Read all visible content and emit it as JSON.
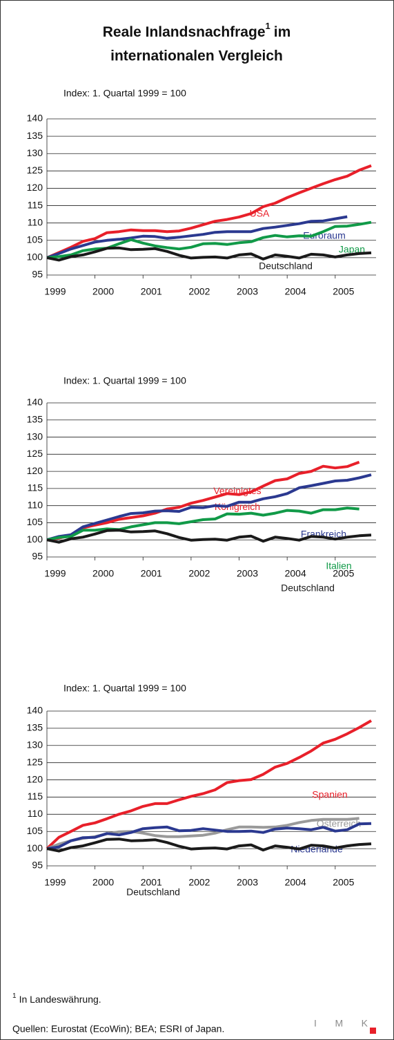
{
  "title": "Reale Inlandsnachfrage",
  "title_mark": "1",
  "title_end": "im",
  "title_line2": "internationalen Vergleich",
  "footnote": {
    "mark": "1",
    "text": "In Landeswährung."
  },
  "sources": "Quellen: Eurostat (EcoWin); BEA;  ESRI of Japan.",
  "logo": "IMK",
  "chart_data": [
    {
      "type": "line",
      "subtitle": "Index: 1. Quartal 1999 = 100",
      "x": [
        1999,
        1999.25,
        1999.5,
        1999.75,
        2000,
        2000.25,
        2000.5,
        2000.75,
        2001,
        2001.25,
        2001.5,
        2001.75,
        2002,
        2002.25,
        2002.5,
        2002.75,
        2003,
        2003.25,
        2003.5,
        2003.75,
        2004,
        2004.25,
        2004.5,
        2004.75,
        2005,
        2005.25,
        2005.5,
        2005.75
      ],
      "xlim": [
        1999,
        2005.85
      ],
      "xticks": [
        1999,
        2000,
        2001,
        2002,
        2003,
        2004,
        2005
      ],
      "ylim": [
        95,
        140
      ],
      "yticks": [
        95,
        100,
        105,
        110,
        115,
        120,
        125,
        130,
        135,
        140
      ],
      "grid": true,
      "series": [
        {
          "name": "USA",
          "color": "#e8202a",
          "values": [
            100,
            101.5,
            103,
            104.7,
            105.5,
            107.2,
            107.5,
            108,
            107.8,
            107.8,
            107.5,
            107.7,
            108.5,
            109.5,
            110.5,
            111,
            111.7,
            112.7,
            114.7,
            115.7,
            117.3,
            118.7,
            120,
            121.3,
            122.5,
            123.5,
            125.2,
            126.5
          ]
        },
        {
          "name": "Euroraum",
          "color": "#2b3990",
          "values": [
            100,
            101.2,
            102.5,
            103.5,
            104.5,
            105,
            105.3,
            105.7,
            106.2,
            106.1,
            105.6,
            105.9,
            106.3,
            106.7,
            107.3,
            107.5,
            107.5,
            107.5,
            108.4,
            108.8,
            109.3,
            109.8,
            110.5,
            110.6,
            111.2,
            111.8,
            null,
            null
          ]
        },
        {
          "name": "Japan",
          "color": "#119a48",
          "values": [
            100,
            100.3,
            100.8,
            102,
            102.5,
            102.7,
            104,
            105.2,
            104.2,
            103.4,
            102.9,
            102.5,
            103,
            104,
            104.1,
            103.8,
            104.3,
            104.6,
            105.8,
            106.4,
            106,
            106.3,
            106.2,
            107.5,
            109,
            109.1,
            109.6,
            110.2
          ]
        },
        {
          "name": "Deutschland",
          "color": "#1a1a1a",
          "values": [
            100,
            99.3,
            100.3,
            100.8,
            101.7,
            102.7,
            102.8,
            102.3,
            102.4,
            102.6,
            101.8,
            100.7,
            99.9,
            100.1,
            100.2,
            99.9,
            100.8,
            101.1,
            99.6,
            100.8,
            100.4,
            99.9,
            101,
            100.8,
            100.2,
            100.8,
            101.2,
            101.4
          ]
        }
      ]
    },
    {
      "type": "line",
      "subtitle": "Index: 1. Quartal 1999 = 100",
      "x": [
        1999,
        1999.25,
        1999.5,
        1999.75,
        2000,
        2000.25,
        2000.5,
        2000.75,
        2001,
        2001.25,
        2001.5,
        2001.75,
        2002,
        2002.25,
        2002.5,
        2002.75,
        2003,
        2003.25,
        2003.5,
        2003.75,
        2004,
        2004.25,
        2004.5,
        2004.75,
        2005,
        2005.25,
        2005.5,
        2005.75
      ],
      "xlim": [
        1999,
        2005.85
      ],
      "xticks": [
        1999,
        2000,
        2001,
        2002,
        2003,
        2004,
        2005
      ],
      "ylim": [
        95,
        140
      ],
      "yticks": [
        95,
        100,
        105,
        110,
        115,
        120,
        125,
        130,
        135,
        140
      ],
      "grid": true,
      "series": [
        {
          "name": "Vereinigtes Königreich",
          "color": "#e8202a",
          "values": [
            100,
            100.5,
            101.3,
            103.5,
            104.3,
            105,
            106,
            106.5,
            107,
            107.8,
            109,
            109.5,
            110.7,
            111.5,
            112.5,
            113.5,
            113.2,
            114,
            115.7,
            117.3,
            117.8,
            119.4,
            120,
            121.5,
            121,
            121.4,
            122.7,
            null
          ]
        },
        {
          "name": "Frankreich",
          "color": "#2b3990",
          "values": [
            100,
            101,
            101.5,
            103.8,
            104.8,
            105.8,
            106.8,
            107.7,
            107.9,
            108.4,
            108.5,
            108.3,
            109.5,
            109.4,
            110,
            109.8,
            111,
            111,
            112,
            112.6,
            113.5,
            115.2,
            115.8,
            116.5,
            117.2,
            117.4,
            118.1,
            119
          ]
        },
        {
          "name": "Italien",
          "color": "#119a48",
          "values": [
            100,
            100.7,
            101,
            102.8,
            102.8,
            103.2,
            103,
            103.8,
            104.4,
            105,
            105,
            104.7,
            105.3,
            105.9,
            106.1,
            107.6,
            107.5,
            107.8,
            107.2,
            107.8,
            108.6,
            108.4,
            107.8,
            108.8,
            108.8,
            109.3,
            109,
            null
          ]
        },
        {
          "name": "Deutschland",
          "color": "#1a1a1a",
          "values": [
            100,
            99.3,
            100.3,
            100.8,
            101.7,
            102.7,
            102.8,
            102.3,
            102.4,
            102.6,
            101.8,
            100.7,
            99.9,
            100.1,
            100.2,
            99.9,
            100.8,
            101.1,
            99.6,
            100.8,
            100.4,
            99.9,
            101,
            100.8,
            100.2,
            100.8,
            101.2,
            101.4
          ]
        }
      ]
    },
    {
      "type": "line",
      "subtitle": "Index: 1. Quartal 1999 = 100",
      "x": [
        1999,
        1999.25,
        1999.5,
        1999.75,
        2000,
        2000.25,
        2000.5,
        2000.75,
        2001,
        2001.25,
        2001.5,
        2001.75,
        2002,
        2002.25,
        2002.5,
        2002.75,
        2003,
        2003.25,
        2003.5,
        2003.75,
        2004,
        2004.25,
        2004.5,
        2004.75,
        2005,
        2005.25,
        2005.5,
        2005.75
      ],
      "xlim": [
        1999,
        2005.85
      ],
      "xticks": [
        1999,
        2000,
        2001,
        2002,
        2003,
        2004,
        2005
      ],
      "ylim": [
        95,
        140
      ],
      "yticks": [
        95,
        100,
        105,
        110,
        115,
        120,
        125,
        130,
        135,
        140
      ],
      "grid": true,
      "series": [
        {
          "name": "Spanien",
          "color": "#e8202a",
          "values": [
            100,
            103.3,
            105,
            106.8,
            107.5,
            108.7,
            110,
            111,
            112.3,
            113.1,
            113.1,
            114.2,
            115.2,
            116,
            117.1,
            119.2,
            119.8,
            120.1,
            121.6,
            123.7,
            124.8,
            126.5,
            128.4,
            130.7,
            131.8,
            133.4,
            135.2,
            137.2
          ]
        },
        {
          "name": "Österreich",
          "color": "#9a9a9a",
          "values": [
            100,
            101.3,
            102.3,
            103,
            103.5,
            104.3,
            104.9,
            105,
            104.5,
            103.8,
            103.5,
            103.5,
            103.7,
            103.9,
            104.5,
            105.5,
            106.3,
            106.3,
            106.2,
            106.3,
            106.8,
            107.6,
            108.2,
            108.5,
            108.5,
            108.5,
            108.8,
            null
          ]
        },
        {
          "name": "Niederlande",
          "color": "#2b3990",
          "values": [
            100,
            100.5,
            102.3,
            103.2,
            103.3,
            104.4,
            104,
            104.7,
            105.8,
            106.1,
            106.3,
            105.2,
            105.3,
            105.8,
            105.4,
            105,
            105,
            105.1,
            104.7,
            105.7,
            106,
            105.8,
            105.5,
            106.2,
            105.1,
            105.5,
            107.2,
            107.3
          ]
        },
        {
          "name": "Deutschland",
          "color": "#1a1a1a",
          "values": [
            100,
            99.3,
            100.3,
            100.8,
            101.7,
            102.7,
            102.8,
            102.3,
            102.4,
            102.6,
            101.8,
            100.7,
            99.9,
            100.1,
            100.2,
            99.9,
            100.8,
            101.1,
            99.6,
            100.8,
            100.4,
            99.9,
            101,
            100.8,
            100.2,
            100.8,
            101.2,
            101.4
          ]
        }
      ]
    }
  ]
}
